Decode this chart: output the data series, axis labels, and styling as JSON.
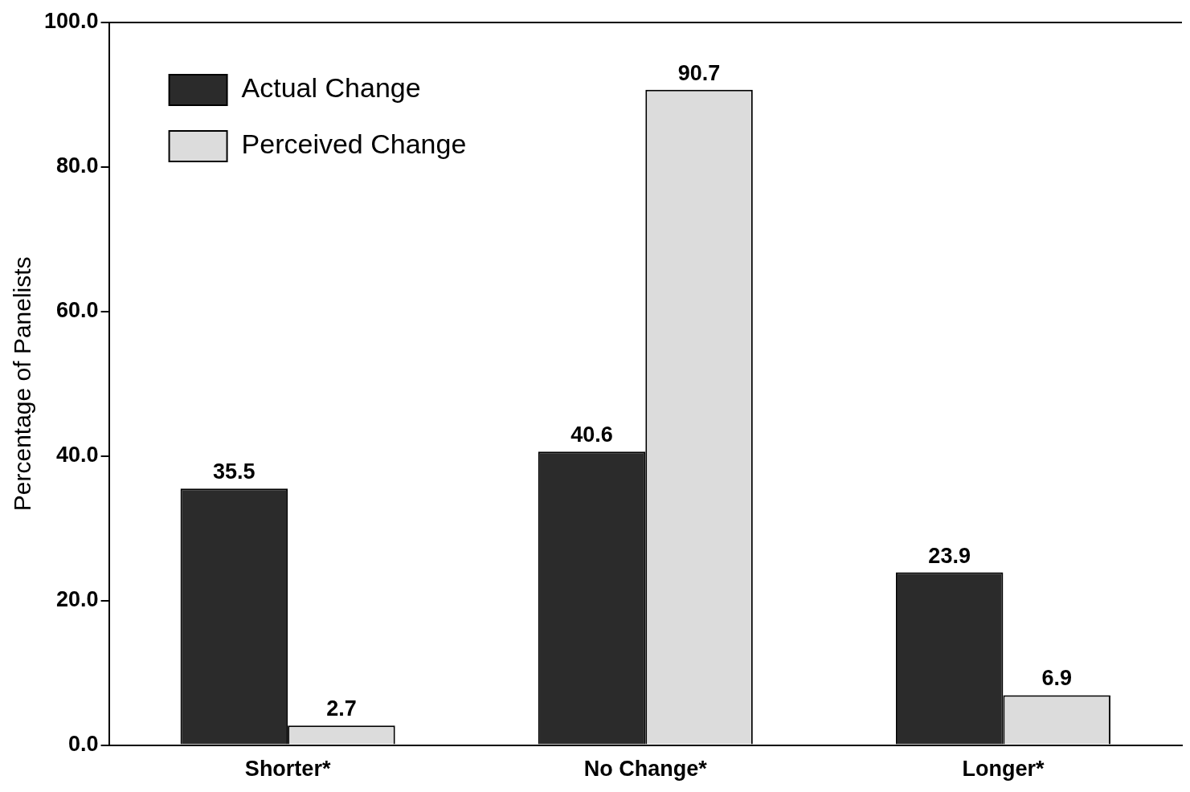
{
  "chart_data": {
    "type": "bar",
    "ylabel": "Percentage of Panelists",
    "categories": [
      "Shorter*",
      "No Change*",
      "Longer*"
    ],
    "series": [
      {
        "name": "Actual Change",
        "color": "#2b2b2b",
        "values": [
          35.5,
          40.6,
          23.9
        ]
      },
      {
        "name": "Perceived Change",
        "color": "#dcdcdc",
        "values": [
          2.7,
          90.7,
          6.9
        ]
      }
    ],
    "ylim": [
      0,
      100
    ],
    "yticks": [
      {
        "value": 0,
        "label": "0.0"
      },
      {
        "value": 20,
        "label": "20.0"
      },
      {
        "value": 40,
        "label": "40.0"
      },
      {
        "value": 60,
        "label": "60.0"
      },
      {
        "value": 80,
        "label": "80.0"
      },
      {
        "value": 100,
        "label": "100.0"
      }
    ],
    "data_labels": true,
    "legend": "top left",
    "grid": false
  }
}
